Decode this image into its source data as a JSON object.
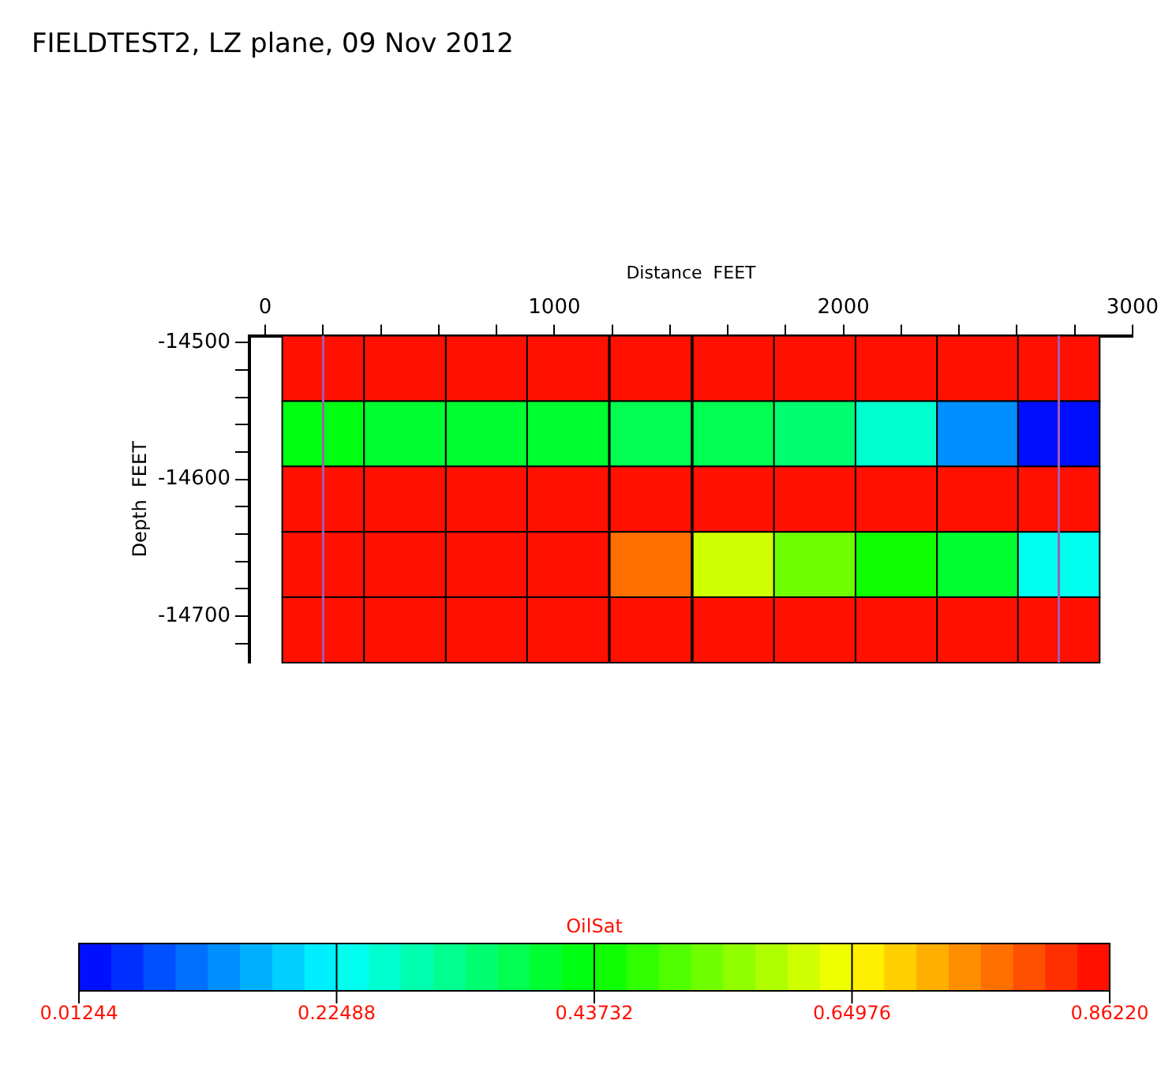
{
  "chart_data": {
    "type": "heatmap",
    "title": "FIELDTEST2, LZ plane, 09 Nov 2012",
    "xlabel": "Distance  FEET",
    "ylabel": "Depth  FEET",
    "clabel": "OilSat",
    "x": [
      200,
      483,
      766,
      1047,
      1333,
      1620,
      1901,
      2183,
      2465,
      2745
    ],
    "cells": [
      [
        0.84,
        0.84,
        0.84,
        0.84,
        0.84,
        0.84,
        0.84,
        0.84,
        0.84,
        0.84
      ],
      [
        0.43,
        0.4,
        0.4,
        0.4,
        0.38,
        0.38,
        0.35,
        0.26,
        0.13,
        0.02
      ],
      [
        0.84,
        0.84,
        0.84,
        0.84,
        0.84,
        0.84,
        0.84,
        0.84,
        0.84,
        0.84
      ],
      [
        0.84,
        0.84,
        0.84,
        0.84,
        0.77,
        0.62,
        0.52,
        0.45,
        0.4,
        0.23
      ],
      [
        0.84,
        0.84,
        0.84,
        0.84,
        0.84,
        0.84,
        0.84,
        0.84,
        0.84,
        0.84
      ]
    ],
    "clim": [
      0.01244,
      0.8622
    ],
    "cticks": [
      {
        "value": 0.01244,
        "label": "0.01244"
      },
      {
        "value": 0.22488,
        "label": "0.22488"
      },
      {
        "value": 0.43732,
        "label": "0.43732"
      },
      {
        "value": 0.64976,
        "label": "0.64976"
      },
      {
        "value": 0.8622,
        "label": "0.86220"
      }
    ],
    "xlim": [
      -55,
      3000
    ],
    "xticks": [
      0,
      {
        "value": 200,
        "label": null
      },
      {
        "value": 400,
        "label": null
      },
      {
        "value": 600,
        "label": null
      },
      {
        "value": 800,
        "label": null
      },
      1000,
      {
        "value": 1200,
        "label": null
      },
      {
        "value": 1400,
        "label": null
      },
      {
        "value": 1600,
        "label": null
      },
      {
        "value": 1800,
        "label": null
      },
      2000,
      {
        "value": 2200,
        "label": null
      },
      {
        "value": 2400,
        "label": null
      },
      {
        "value": 2600,
        "label": null
      },
      {
        "value": 2800,
        "label": null
      },
      3000
    ],
    "ylim": [
      -14734,
      -14495
    ],
    "yticks": [
      -14500,
      {
        "value": -14520,
        "label": null
      },
      {
        "value": -14540,
        "label": null
      },
      {
        "value": -14560,
        "label": null
      },
      {
        "value": -14580,
        "label": null
      },
      -14600,
      {
        "value": -14620,
        "label": null
      },
      {
        "value": -14640,
        "label": null
      },
      {
        "value": -14660,
        "label": null
      },
      {
        "value": -14680,
        "label": null
      },
      -14700,
      {
        "value": -14720,
        "label": null
      }
    ],
    "ref_lines": [
      {
        "axis": "x",
        "value": 200,
        "color": "#a060b0"
      },
      {
        "axis": "x",
        "value": 2745,
        "color": "#a060b0"
      }
    ],
    "grid": false
  }
}
